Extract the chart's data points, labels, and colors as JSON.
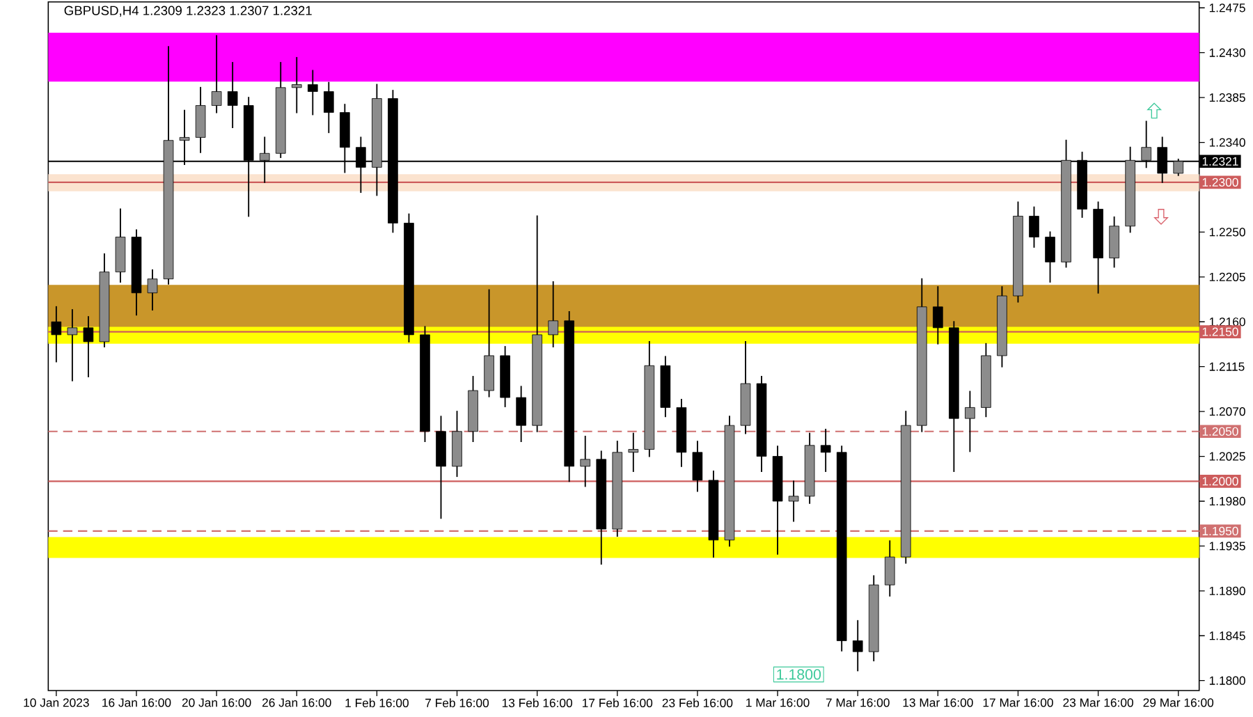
{
  "chart_data": {
    "type": "candlestick",
    "title": "GBPUSD,H4  1.2309 1.2323 1.2307 1.2321",
    "categories": [
      "10 Jan 2023",
      null,
      null,
      null,
      null,
      "16 Jan 16:00",
      null,
      null,
      null,
      null,
      "20 Jan 16:00",
      null,
      null,
      null,
      null,
      "26 Jan 16:00",
      null,
      null,
      null,
      null,
      "1 Feb 16:00",
      null,
      null,
      null,
      null,
      "7 Feb 16:00",
      null,
      null,
      null,
      null,
      "13 Feb 16:00",
      null,
      null,
      null,
      null,
      "17 Feb 16:00",
      null,
      null,
      null,
      null,
      "23 Feb 16:00",
      null,
      null,
      null,
      null,
      "1 Mar 16:00",
      null,
      null,
      null,
      null,
      "7 Mar 16:00",
      null,
      null,
      null,
      null,
      "13 Mar 16:00",
      null,
      null,
      null,
      null,
      "17 Mar 16:00",
      null,
      null,
      null,
      null,
      "23 Mar 16:00",
      null,
      null,
      null,
      null,
      "29 Mar 16:00"
    ],
    "ohlc": [
      [
        1.216,
        1.2175,
        1.212,
        1.2147
      ],
      [
        1.2147,
        1.2172,
        1.2101,
        1.2154
      ],
      [
        1.2154,
        1.2165,
        1.2105,
        1.214
      ],
      [
        1.214,
        1.2228,
        1.2135,
        1.221
      ],
      [
        1.221,
        1.2273,
        1.22,
        1.2245
      ],
      [
        1.2245,
        1.2252,
        1.2167,
        1.2189
      ],
      [
        1.2189,
        1.2212,
        1.2172,
        1.2203
      ],
      [
        1.2203,
        1.2436,
        1.2198,
        1.2342
      ],
      [
        1.2342,
        1.2372,
        1.2318,
        1.2345
      ],
      [
        1.2345,
        1.2395,
        1.233,
        1.2377
      ],
      [
        1.2377,
        1.2447,
        1.237,
        1.2391
      ],
      [
        1.2391,
        1.242,
        1.2355,
        1.2377
      ],
      [
        1.2377,
        1.2385,
        1.2266,
        1.2322
      ],
      [
        1.2322,
        1.2345,
        1.23,
        1.2329
      ],
      [
        1.2329,
        1.242,
        1.2325,
        1.2395
      ],
      [
        1.2395,
        1.2425,
        1.237,
        1.2398
      ],
      [
        1.2398,
        1.2412,
        1.2368,
        1.2391
      ],
      [
        1.2391,
        1.24,
        1.235,
        1.237
      ],
      [
        1.237,
        1.2378,
        1.231,
        1.2335
      ],
      [
        1.2335,
        1.2345,
        1.229,
        1.2315
      ],
      [
        1.2315,
        1.2398,
        1.2287,
        1.2384
      ],
      [
        1.2384,
        1.2392,
        1.225,
        1.2259
      ],
      [
        1.2259,
        1.2268,
        1.214,
        1.2147
      ],
      [
        1.2147,
        1.2155,
        1.204,
        1.205
      ],
      [
        1.205,
        1.2065,
        1.1963,
        1.2015
      ],
      [
        1.2015,
        1.207,
        1.2005,
        1.205
      ],
      [
        1.205,
        1.2105,
        1.204,
        1.2091
      ],
      [
        1.2091,
        1.2192,
        1.2085,
        1.2126
      ],
      [
        1.2126,
        1.2135,
        1.2075,
        1.2084
      ],
      [
        1.2084,
        1.2095,
        1.204,
        1.2056
      ],
      [
        1.2056,
        1.2266,
        1.205,
        1.2147
      ],
      [
        1.2147,
        1.22,
        1.2135,
        1.2161
      ],
      [
        1.2161,
        1.217,
        1.2,
        1.2015
      ],
      [
        1.2015,
        1.2045,
        1.1995,
        1.2022
      ],
      [
        1.2022,
        1.203,
        1.1917,
        1.1952
      ],
      [
        1.1952,
        1.204,
        1.1945,
        1.2029
      ],
      [
        1.2029,
        1.2048,
        1.201,
        1.2032
      ],
      [
        1.2032,
        1.214,
        1.2025,
        1.2116
      ],
      [
        1.2116,
        1.2125,
        1.2065,
        1.2074
      ],
      [
        1.2074,
        1.2082,
        1.2015,
        1.2029
      ],
      [
        1.2029,
        1.204,
        1.199,
        1.2001
      ],
      [
        1.2001,
        1.201,
        1.1924,
        1.1941
      ],
      [
        1.1941,
        1.2065,
        1.1935,
        1.2056
      ],
      [
        1.2056,
        1.214,
        1.2048,
        1.2098
      ],
      [
        1.2098,
        1.2105,
        1.201,
        1.2025
      ],
      [
        1.2025,
        1.2035,
        1.1927,
        1.198
      ],
      [
        1.198,
        1.2,
        1.196,
        1.1985
      ],
      [
        1.1985,
        1.2048,
        1.1978,
        1.2036
      ],
      [
        1.2036,
        1.2052,
        1.201,
        1.2029
      ],
      [
        1.2029,
        1.2035,
        1.183,
        1.184
      ],
      [
        1.184,
        1.186,
        1.181,
        1.1829
      ],
      [
        1.1829,
        1.1905,
        1.182,
        1.1896
      ],
      [
        1.1896,
        1.194,
        1.1885,
        1.1924
      ],
      [
        1.1924,
        1.207,
        1.1918,
        1.2056
      ],
      [
        1.2056,
        1.2203,
        1.205,
        1.2175
      ],
      [
        1.2175,
        1.2195,
        1.2138,
        1.2154
      ],
      [
        1.2154,
        1.216,
        1.201,
        1.2063
      ],
      [
        1.2063,
        1.209,
        1.203,
        1.2074
      ],
      [
        1.2074,
        1.2138,
        1.2065,
        1.2126
      ],
      [
        1.2126,
        1.2195,
        1.2115,
        1.2186
      ],
      [
        1.2186,
        1.228,
        1.218,
        1.2266
      ],
      [
        1.2266,
        1.2275,
        1.2235,
        1.2245
      ],
      [
        1.2245,
        1.225,
        1.22,
        1.222
      ],
      [
        1.222,
        1.2342,
        1.2215,
        1.2322
      ],
      [
        1.2322,
        1.233,
        1.2265,
        1.2273
      ],
      [
        1.2273,
        1.228,
        1.2189,
        1.2224
      ],
      [
        1.2224,
        1.2265,
        1.2215,
        1.2256
      ],
      [
        1.2256,
        1.2335,
        1.225,
        1.2322
      ],
      [
        1.2322,
        1.2361,
        1.2315,
        1.2335
      ],
      [
        1.2335,
        1.2345,
        1.23,
        1.2309
      ],
      [
        1.2309,
        1.2323,
        1.2307,
        1.2321
      ]
    ],
    "colors": [
      "#000000",
      "#8c8c8c",
      "#000000",
      "#8c8c8c",
      "#8c8c8c",
      "#000000",
      "#8c8c8c",
      "#8c8c8c",
      "#8c8c8c",
      "#8c8c8c",
      "#8c8c8c",
      "#000000",
      "#000000",
      "#8c8c8c",
      "#8c8c8c",
      "#8c8c8c",
      "#000000",
      "#000000",
      "#000000",
      "#000000",
      "#8c8c8c",
      "#000000",
      "#000000",
      "#000000",
      "#000000",
      "#8c8c8c",
      "#8c8c8c",
      "#8c8c8c",
      "#000000",
      "#000000",
      "#8c8c8c",
      "#8c8c8c",
      "#000000",
      "#8c8c8c",
      "#000000",
      "#8c8c8c",
      "#8c8c8c",
      "#8c8c8c",
      "#000000",
      "#000000",
      "#000000",
      "#000000",
      "#8c8c8c",
      "#8c8c8c",
      "#000000",
      "#000000",
      "#8c8c8c",
      "#8c8c8c",
      "#000000",
      "#000000",
      "#000000",
      "#8c8c8c",
      "#8c8c8c",
      "#8c8c8c",
      "#8c8c8c",
      "#000000",
      "#000000",
      "#8c8c8c",
      "#8c8c8c",
      "#8c8c8c",
      "#8c8c8c",
      "#000000",
      "#000000",
      "#8c8c8c",
      "#000000",
      "#000000",
      "#8c8c8c",
      "#8c8c8c",
      "#8c8c8c",
      "#000000",
      "#8c8c8c"
    ],
    "ylim": [
      1.179,
      1.2481
    ],
    "yticks": [
      1.2475,
      {
        "value": 1.243,
        "label": "1.2430"
      },
      1.2385,
      {
        "value": 1.234,
        "label": "1.2340"
      },
      {
        "value": 1.225,
        "label": "1.2250"
      },
      1.2205,
      {
        "value": 1.216,
        "label": "1.2160"
      },
      1.2115,
      {
        "value": 1.207,
        "label": "1.2070"
      },
      1.2025,
      {
        "value": 1.198,
        "label": "1.1980"
      },
      1.1935,
      {
        "value": 1.189,
        "label": "1.1890"
      },
      1.1845,
      {
        "value": 1.18,
        "label": "1.1800"
      }
    ],
    "bands": [
      {
        "axis": "y",
        "from": 1.2401,
        "to": 1.245,
        "color": "#ff00ff"
      },
      {
        "axis": "y",
        "from": 1.2291,
        "to": 1.2308,
        "color": "#fbe3cf"
      },
      {
        "axis": "y",
        "from": 1.214,
        "to": 1.2197,
        "color": "#c9962a"
      },
      {
        "axis": "y",
        "from": 1.2138,
        "to": 1.2155,
        "color": "#ffff00"
      },
      {
        "axis": "y",
        "from": 1.1923,
        "to": 1.1944,
        "color": "#ffff00"
      }
    ],
    "ref_lines": [
      {
        "axis": "y",
        "value": 1.2321,
        "label": "1.2321",
        "color": "#000000",
        "line_style": "solid"
      },
      {
        "axis": "y",
        "value": 1.23,
        "label": "1.2300",
        "color": "#cd5c5c",
        "line_style": "solid"
      },
      {
        "axis": "y",
        "value": 1.215,
        "label": "1.2150",
        "color": "#cd5c5c",
        "line_style": "solid"
      },
      {
        "axis": "y",
        "value": 1.205,
        "label": "1.2050",
        "color": "#d07070",
        "line_style": "dashed"
      },
      {
        "axis": "y",
        "value": 1.2,
        "label": "1.2000",
        "color": "#cd5c5c",
        "line_style": "solid"
      },
      {
        "axis": "y",
        "value": 1.195,
        "label": "1.1950",
        "color": "#d07070",
        "line_style": "dashed"
      }
    ],
    "annotations": [
      "1.1800"
    ]
  }
}
